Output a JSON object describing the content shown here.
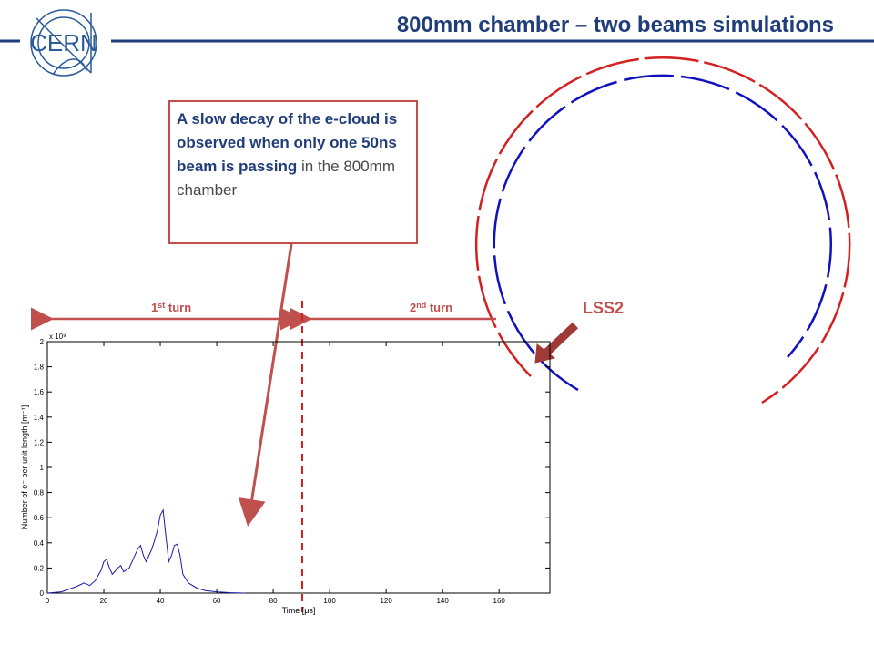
{
  "slide": {
    "title": "800mm chamber – two beams simulations",
    "logo": "CERN",
    "callout_bold": "A slow decay of the e-cloud is observed when only one 50ns beam is passing",
    "callout_normal": " in the 800mm chamber",
    "turn1": {
      "n": "1",
      "sup": "st",
      "word": " turn"
    },
    "turn2": {
      "n": "2",
      "sup": "nd",
      "word": " turn"
    },
    "marker": "LSS2"
  },
  "chart_data": {
    "type": "line",
    "color": "#1a1aa8",
    "xlabel": "Time [μs]",
    "ylabel": "Number of e⁻ per unit length [m⁻¹]",
    "yscale_label": "x 10⁹",
    "x": [
      0,
      5,
      10,
      13,
      15,
      17,
      19,
      20,
      21,
      22,
      23,
      25,
      26,
      27,
      29,
      31,
      32,
      33,
      34,
      35,
      37,
      38,
      39,
      40,
      41,
      42,
      43,
      44,
      45,
      46,
      47,
      48,
      50,
      53,
      56,
      60,
      65,
      70
    ],
    "values": [
      0,
      0.01,
      0.05,
      0.08,
      0.06,
      0.1,
      0.18,
      0.25,
      0.27,
      0.2,
      0.15,
      0.2,
      0.22,
      0.17,
      0.2,
      0.3,
      0.35,
      0.38,
      0.3,
      0.25,
      0.35,
      0.42,
      0.5,
      0.62,
      0.66,
      0.45,
      0.25,
      0.3,
      0.38,
      0.39,
      0.3,
      0.15,
      0.08,
      0.04,
      0.02,
      0.01,
      0.003,
      0
    ],
    "xlim": [
      0,
      178
    ],
    "xticks": [
      0,
      20,
      40,
      60,
      80,
      100,
      120,
      140,
      160
    ],
    "ylim": [
      0,
      2
    ],
    "yticks": [
      0,
      0.2,
      0.4,
      0.6,
      0.8,
      1,
      1.2,
      1.4,
      1.6,
      1.8,
      2
    ]
  }
}
